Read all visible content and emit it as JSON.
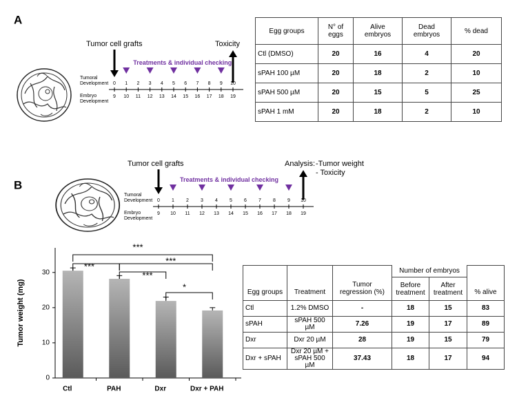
{
  "panel_a": {
    "label": "A",
    "timeline": {
      "grafts": "Tumor cell grafts",
      "end": "Toxicity",
      "treatments": "Treatments & individual checking",
      "tumoral_label": "Tumoral Development",
      "embryo_label": "Embryo Development",
      "tumoral": [
        0,
        1,
        2,
        3,
        4,
        5,
        6,
        7,
        8,
        9,
        10
      ],
      "embryo": [
        9,
        10,
        11,
        12,
        13,
        14,
        15,
        16,
        17,
        18,
        19
      ]
    },
    "table": {
      "header": [
        "Egg groups",
        "N° of\neggs",
        "Alive\nembryos",
        "Dead\nembryos",
        "% dead"
      ],
      "rows": [
        [
          "Ctl (DMSO)",
          20,
          16,
          4,
          20
        ],
        [
          "sPAH 100 µM",
          20,
          18,
          2,
          10
        ],
        [
          "sPAH 500 µM",
          20,
          15,
          5,
          25
        ],
        [
          "sPAH 1 mM",
          20,
          18,
          2,
          10
        ]
      ]
    }
  },
  "panel_b": {
    "label": "B",
    "timeline": {
      "grafts": "Tumor cell grafts",
      "end": "Analysis:",
      "end_items": [
        "-Tumor weight",
        "- Toxicity"
      ],
      "treatments": "Treatments & individual checking",
      "tumoral_label": "Tumoral Development",
      "embryo_label": "Embryo Development",
      "tumoral": [
        0,
        1,
        2,
        3,
        4,
        5,
        6,
        7,
        8,
        9,
        10
      ],
      "embryo": [
        9,
        10,
        11,
        12,
        13,
        14,
        15,
        16,
        17,
        18,
        19
      ]
    },
    "table": {
      "group_header": "Number of embryos",
      "header": [
        "Egg groups",
        "Treatment",
        "Tumor\nregression (%)",
        "Before\ntreatment",
        "After\ntreatment",
        "% alive"
      ],
      "rows": [
        [
          "Ctl",
          "1.2% DMSO",
          "-",
          18,
          15,
          83
        ],
        [
          "sPAH",
          "sPAH 500 µM",
          7.26,
          19,
          17,
          89
        ],
        [
          "Dxr",
          "Dxr 20 µM",
          28,
          19,
          15,
          79
        ],
        [
          "Dxr + sPAH",
          "Dxr 20 µM +\nsPAH 500 µM",
          37.43,
          18,
          17,
          94
        ]
      ]
    }
  },
  "chart_data": {
    "type": "bar",
    "y_label": "Tumor weight (mg)",
    "categories": [
      "Ctl",
      "PAH",
      "Dxr",
      "Dxr + PAH"
    ],
    "values": [
      30.5,
      28.2,
      21.9,
      19.2
    ],
    "errors": [
      0.8,
      0.9,
      1.1,
      0.8
    ],
    "ylim": [
      0,
      37
    ],
    "yticks": [
      0,
      10,
      20,
      30
    ],
    "annotations": [
      "***",
      "***",
      "***",
      "***",
      "*"
    ]
  }
}
